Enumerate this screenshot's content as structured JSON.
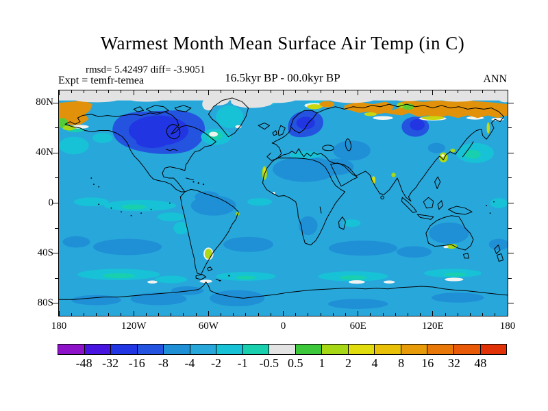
{
  "figure": {
    "title": "Warmest Month Mean Surface Air Temp (in C)",
    "stats_line": "rmsd= 5.42497 diff= -3.9051",
    "experiment_label": "Expt = temfr-temea",
    "period_label": "16.5kyr BP - 00.0kyr BP",
    "season_label": "ANN"
  },
  "map": {
    "lat_labels": [
      "80N",
      "40N",
      "0",
      "40S",
      "80S"
    ],
    "lon_labels": [
      "180",
      "120W",
      "60W",
      "0",
      "60E",
      "120E",
      "180"
    ]
  },
  "chart_data": {
    "type": "heatmap",
    "subtype": "filled-contour world map, equirectangular projection",
    "title": "Warmest Month Mean Surface Air Temp (in C)",
    "statistics": {
      "rmsd": 5.42497,
      "diff": -3.9051
    },
    "experiment": "temfr-temea",
    "period": "16.5kyr BP - 00.0kyr BP",
    "season": "ANN",
    "units": "degrees C (difference, 16.5kyr BP minus 00.0kyr BP)",
    "lon_range": [
      -180,
      180
    ],
    "lat_range": [
      -90,
      90
    ],
    "x_tick_labels": [
      "180",
      "120W",
      "60W",
      "0",
      "60E",
      "120E",
      "180"
    ],
    "y_tick_labels": [
      "80N",
      "40N",
      "0",
      "40S",
      "80S"
    ],
    "grid": false,
    "legend_position": "bottom horizontal colorbar",
    "colorbar": {
      "levels": [
        -48,
        -32,
        -16,
        -8,
        -4,
        -2,
        -1,
        -0.5,
        0.5,
        1,
        2,
        4,
        8,
        16,
        32,
        48
      ],
      "level_labels": [
        "-48",
        "-32",
        "-16",
        "-8",
        "-4",
        "-2",
        "-1",
        "-0.5",
        "0.5",
        "1",
        "2",
        "4",
        "8",
        "16",
        "32",
        "48"
      ],
      "colors": [
        "#8E12C8",
        "#4814E0",
        "#2136E2",
        "#2453E0",
        "#1F8FD6",
        "#28A7DB",
        "#17C2D6",
        "#18CFAE",
        "#E3E3E3",
        "#3DC83C",
        "#A6D816",
        "#E0DC0E",
        "#E9C008",
        "#E89B08",
        "#E87808",
        "#E85A08",
        "#E03206"
      ]
    },
    "regions": [
      {
        "region": "Arctic polar cap north of ~82N",
        "value_range_C": "-0.5 to 0.5 (gray band)"
      },
      {
        "region": "Canada / Laurentide ice-sheet area and Scandinavia",
        "value_range_C": "-32 to -8 (dark blue)"
      },
      {
        "region": "Arctic coasts of Alaska and Siberia",
        "value_range_C": "+8 to +32 (orange band)"
      },
      {
        "region": "Most oceans and continents",
        "value_range_C": "-4 to -2 (light blue)"
      },
      {
        "region": "Sahara, Arabia, central Asia, Amazon, southern Africa, Australia, subtropical southern oceans, Sea of Okhotsk, Antarctic coast",
        "value_range_C": "-16 to -4 (medium blue)"
      },
      {
        "region": "Equatorial East Pacific, Labrador Sea, NW Pacific, Mediterranean, Southern Ocean streaks, Greenland interior",
        "value_range_C": "-2 to -0.5 (cyan/teal)"
      },
      {
        "region": "Small coastal spots: W Africa, NE Brazil, India, Korea, Patagonia, S Australia, Taymyr, Novaya Zemlya",
        "value_range_C": "+0.5 to +4 (green/yellow, white cores near 0)"
      }
    ]
  }
}
